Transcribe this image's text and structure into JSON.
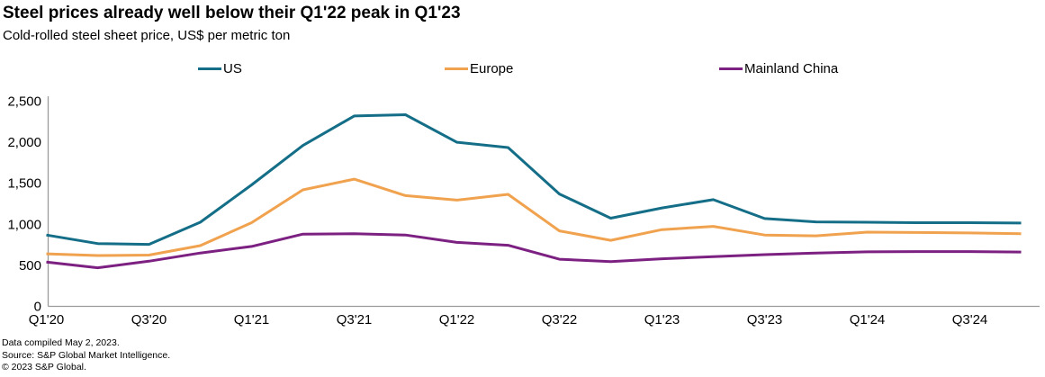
{
  "header": {
    "title": "Steel prices already well below their Q1'22 peak in Q1'23",
    "subtitle": "Cold-rolled steel sheet price, US$ per metric ton"
  },
  "chart_data": {
    "type": "line",
    "title": "Steel prices already well below their Q1'22 peak in Q1'23",
    "subtitle": "Cold-rolled steel sheet price, US$ per metric ton",
    "unit": "US$ per metric ton",
    "categories": [
      "Q1'20",
      "Q2'20",
      "Q3'20",
      "Q4'20",
      "Q1'21",
      "Q2'21",
      "Q3'21",
      "Q4'21",
      "Q1'22",
      "Q2'22",
      "Q3'22",
      "Q4'22",
      "Q1'23",
      "Q2'23",
      "Q3'23",
      "Q4'23",
      "Q1'24",
      "Q2'24",
      "Q3'24",
      "Q4'24"
    ],
    "xtick_labels": [
      "Q1'20",
      "Q3'20",
      "Q1'21",
      "Q3'21",
      "Q1'22",
      "Q3'22",
      "Q1'23",
      "Q3'23",
      "Q1'24",
      "Q3'24"
    ],
    "ytick_labels": [
      "0",
      "500",
      "1,000",
      "1,500",
      "2,000",
      "2,500"
    ],
    "ytick_values": [
      0,
      500,
      1000,
      1500,
      2000,
      2500
    ],
    "ylim": [
      0,
      2500
    ],
    "grid": false,
    "legend_position": "top",
    "series": [
      {
        "name": "US",
        "color": "#146e87",
        "values": [
          870,
          765,
          755,
          1025,
          1480,
          1960,
          2320,
          2335,
          2000,
          1935,
          1370,
          1075,
          1200,
          1300,
          1070,
          1030,
          1025,
          1020,
          1020,
          1015
        ]
      },
      {
        "name": "Europe",
        "color": "#f0a24e",
        "values": [
          640,
          620,
          625,
          740,
          1020,
          1420,
          1550,
          1350,
          1295,
          1365,
          920,
          805,
          935,
          975,
          870,
          860,
          905,
          900,
          895,
          885
        ]
      },
      {
        "name": "Mainland China",
        "color": "#7c2182",
        "values": [
          540,
          470,
          550,
          650,
          730,
          880,
          885,
          870,
          780,
          745,
          575,
          545,
          580,
          605,
          630,
          650,
          665,
          668,
          668,
          662
        ]
      }
    ]
  },
  "footer": {
    "line1": "Data compiled May 2, 2023.",
    "line2": "Source: S&P Global Market Intelligence.",
    "line3": "© 2023 S&P Global."
  }
}
